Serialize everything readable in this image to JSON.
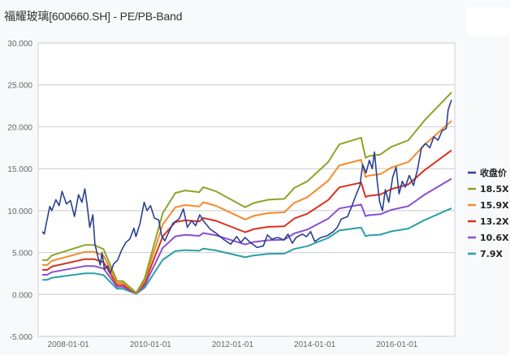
{
  "title": "福耀玻璃[600660.SH] - PE/PB-Band",
  "chart_data": {
    "type": "line",
    "title": "福耀玻璃[600660.SH] - PE/PB-Band",
    "xlabel": "",
    "ylabel": "",
    "ylim": [
      -5,
      30
    ],
    "xlim": [
      "2007-04-08",
      "2017-05-30"
    ],
    "yticks": [
      "-5.000",
      "0.000",
      "5.000",
      "10.000",
      "15.000",
      "20.000",
      "25.000",
      "30.000"
    ],
    "xticks": [
      "2008-01-01",
      "2010-01-01",
      "2012-01-01",
      "2014-01-01",
      "2016-01-01"
    ],
    "grid": true,
    "legend_position": "right",
    "band_x": [
      "2007-05-15",
      "2007-06-28",
      "2007-08-07",
      "2008-05-27",
      "2008-08-18",
      "2008-11-10",
      "2009-03-10",
      "2009-05-01",
      "2009-08-28",
      "2009-11-10",
      "2010-04-20",
      "2010-08-10",
      "2010-11-06",
      "2011-03-10",
      "2011-04-15",
      "2011-08-07",
      "2012-04-22",
      "2012-07-05",
      "2012-11-14",
      "2013-04-05",
      "2013-07-02",
      "2013-10-27",
      "2014-05-01",
      "2014-08-07",
      "2015-02-17",
      "2015-03-28",
      "2015-04-27",
      "2015-08-07",
      "2015-11-10",
      "2016-04-12",
      "2016-09-05",
      "2017-05-01"
    ],
    "series": [
      {
        "name": "收盘价",
        "color": "#2b3f8e",
        "x": [
          "2007-05-15",
          "2007-06-01",
          "2007-06-20",
          "2007-07-20",
          "2007-08-07",
          "2007-09-12",
          "2007-10-12",
          "2007-11-06",
          "2007-12-15",
          "2008-01-20",
          "2008-02-25",
          "2008-04-01",
          "2008-05-01",
          "2008-05-27",
          "2008-06-15",
          "2008-07-10",
          "2008-08-07",
          "2008-08-25",
          "2008-09-20",
          "2008-10-12",
          "2008-10-27",
          "2008-11-18",
          "2008-12-15",
          "2009-01-08",
          "2009-02-06",
          "2009-03-15",
          "2009-04-20",
          "2009-05-27",
          "2009-07-01",
          "2009-08-07",
          "2009-08-25",
          "2009-10-01",
          "2009-11-06",
          "2009-12-01",
          "2010-01-01",
          "2010-02-06",
          "2010-03-15",
          "2010-04-10",
          "2010-05-08",
          "2010-06-15",
          "2010-07-20",
          "2010-09-12",
          "2010-10-20",
          "2010-11-25",
          "2011-01-01",
          "2011-02-06",
          "2011-03-15",
          "2011-04-20",
          "2011-06-15",
          "2011-08-07",
          "2011-10-20",
          "2011-12-15",
          "2012-02-06",
          "2012-03-15",
          "2012-04-20",
          "2012-06-15",
          "2012-08-07",
          "2012-10-01",
          "2012-11-06",
          "2012-12-15",
          "2013-02-06",
          "2013-04-01",
          "2013-05-08",
          "2013-06-15",
          "2013-07-20",
          "2013-09-12",
          "2013-10-20",
          "2013-11-25",
          "2014-01-01",
          "2014-02-25",
          "2014-04-20",
          "2014-06-15",
          "2014-07-20",
          "2014-08-25",
          "2014-10-20",
          "2014-11-25",
          "2015-01-01",
          "2015-02-06",
          "2015-03-03",
          "2015-04-01",
          "2015-05-01",
          "2015-05-27",
          "2015-06-15",
          "2015-07-10",
          "2015-08-01",
          "2015-08-25",
          "2015-09-20",
          "2015-10-20",
          "2015-11-25",
          "2015-12-25",
          "2016-01-20",
          "2016-02-18",
          "2016-03-15",
          "2016-04-20",
          "2016-05-27",
          "2016-07-01",
          "2016-08-07",
          "2016-09-12",
          "2016-10-20",
          "2016-11-25",
          "2017-01-01",
          "2017-02-06",
          "2017-03-15",
          "2017-04-01",
          "2017-04-20",
          "2017-05-01"
        ],
        "values": [
          7.5,
          7.2,
          8.5,
          10.5,
          10.0,
          11.3,
          10.6,
          12.3,
          10.8,
          11.2,
          9.3,
          11.9,
          11.0,
          12.6,
          10.8,
          8.0,
          9.5,
          6.0,
          4.5,
          3.5,
          5.0,
          3.0,
          3.4,
          2.5,
          3.6,
          4.1,
          5.3,
          6.2,
          6.6,
          7.9,
          6.9,
          8.5,
          11.0,
          10.0,
          10.6,
          9.1,
          8.9,
          7.0,
          6.4,
          7.5,
          8.5,
          9.0,
          10.2,
          8.0,
          8.8,
          8.2,
          9.5,
          8.7,
          7.8,
          7.3,
          6.5,
          6.0,
          6.9,
          6.2,
          6.8,
          6.1,
          5.6,
          5.8,
          7.1,
          6.6,
          6.8,
          6.5,
          7.2,
          6.1,
          6.8,
          7.2,
          6.9,
          7.5,
          6.3,
          6.8,
          7.0,
          7.5,
          8.0,
          9.0,
          9.3,
          10.5,
          11.8,
          13.0,
          15.5,
          14.5,
          16.0,
          15.0,
          17.0,
          13.5,
          11.0,
          10.0,
          12.5,
          11.0,
          14.0,
          15.2,
          12.0,
          13.5,
          12.8,
          14.2,
          13.0,
          14.8,
          17.5,
          18.0,
          17.5,
          18.8,
          18.4,
          19.5,
          19.8,
          22.0,
          22.8,
          23.2
        ]
      },
      {
        "name": "18.5X",
        "color": "#8aa626",
        "values": [
          4.1,
          4.1,
          4.65,
          5.9,
          5.9,
          5.4,
          1.6,
          1.6,
          0.2,
          1.9,
          9.7,
          12.1,
          12.4,
          12.2,
          12.8,
          12.3,
          10.4,
          10.9,
          11.3,
          11.4,
          12.7,
          13.5,
          15.8,
          17.9,
          18.7,
          16.3,
          16.5,
          16.7,
          17.6,
          18.4,
          20.8,
          24.1
        ]
      },
      {
        "name": "15.9X",
        "color": "#f58a2c",
        "values": [
          3.52,
          3.52,
          4.0,
          5.07,
          5.07,
          4.64,
          1.38,
          1.38,
          0.17,
          1.63,
          8.34,
          10.4,
          10.66,
          10.49,
          11.0,
          10.57,
          8.94,
          9.37,
          9.71,
          9.8,
          10.92,
          11.6,
          13.58,
          15.39,
          16.07,
          14.01,
          14.18,
          14.35,
          15.13,
          15.81,
          17.88,
          20.71
        ]
      },
      {
        "name": "13.2X",
        "color": "#d9301e",
        "values": [
          2.93,
          2.93,
          3.32,
          4.21,
          4.21,
          3.85,
          1.14,
          1.14,
          0.14,
          1.36,
          6.92,
          8.63,
          8.85,
          8.7,
          9.13,
          8.78,
          7.42,
          7.78,
          8.06,
          8.13,
          9.06,
          9.63,
          11.27,
          12.77,
          13.34,
          11.63,
          11.77,
          11.92,
          12.56,
          13.13,
          14.84,
          17.2
        ]
      },
      {
        "name": "10.6X",
        "color": "#8a4fd0",
        "values": [
          2.35,
          2.35,
          2.66,
          3.38,
          3.38,
          3.09,
          0.92,
          0.92,
          0.11,
          1.09,
          5.56,
          6.93,
          7.11,
          6.99,
          7.33,
          7.05,
          5.96,
          6.25,
          6.47,
          6.53,
          7.28,
          7.74,
          9.05,
          10.26,
          10.72,
          9.34,
          9.45,
          9.57,
          10.08,
          10.54,
          11.92,
          13.81
        ]
      },
      {
        "name": "7.9X",
        "color": "#2a9fa8",
        "values": [
          1.75,
          1.75,
          1.99,
          2.52,
          2.52,
          2.31,
          0.68,
          0.68,
          0.09,
          0.81,
          4.14,
          5.17,
          5.29,
          5.21,
          5.47,
          5.25,
          4.44,
          4.65,
          4.83,
          4.87,
          5.42,
          5.76,
          6.75,
          7.64,
          7.98,
          6.96,
          7.05,
          7.13,
          7.52,
          7.86,
          8.88,
          10.29
        ]
      }
    ]
  }
}
